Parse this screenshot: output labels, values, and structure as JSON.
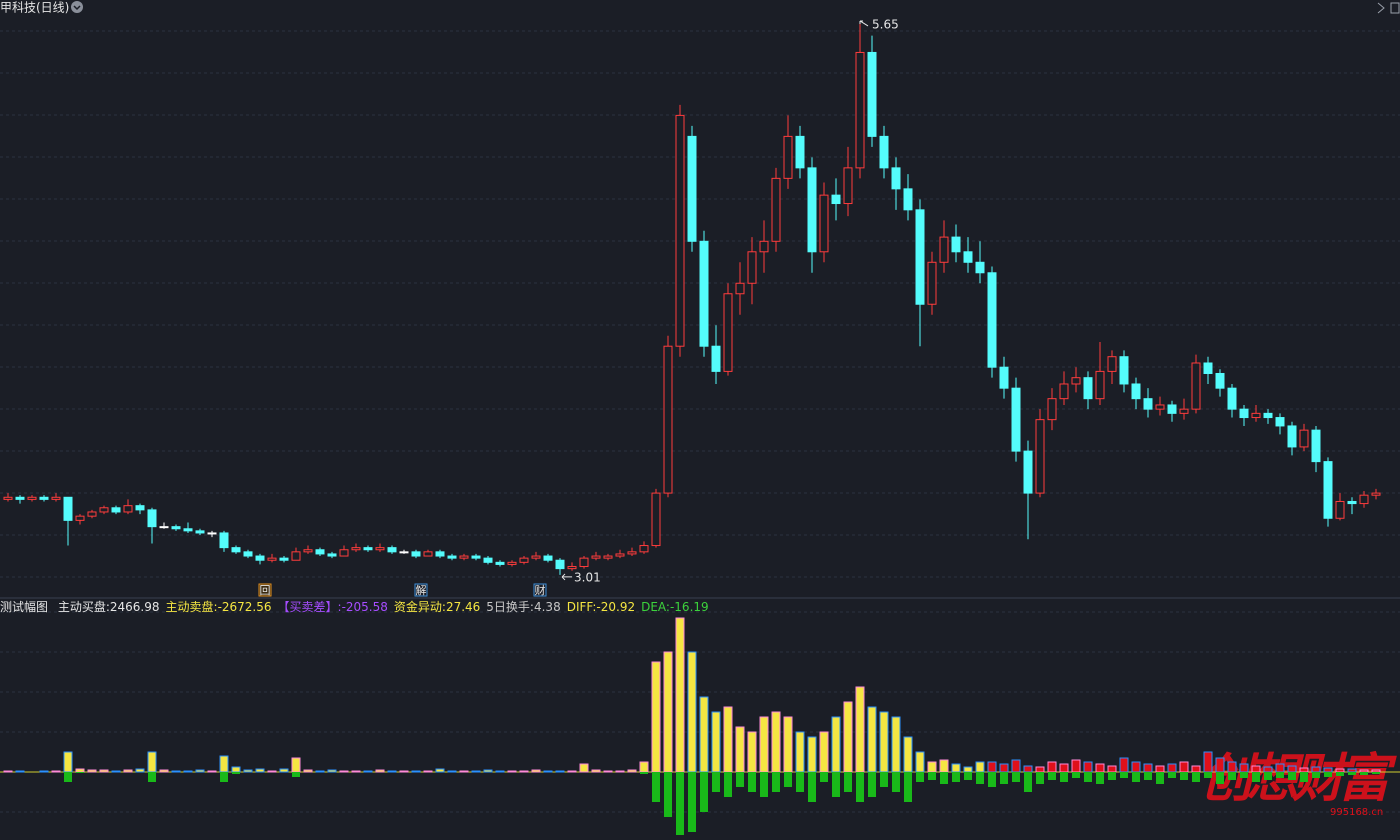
{
  "header": {
    "title": "甲科技(日线)",
    "watermark": "创想财富",
    "site": "995168.cn"
  },
  "chart_data": [
    {
      "type": "candlestick",
      "ylim": [
        2.9,
        5.75
      ],
      "up_color": "#ff3c3c",
      "down_color": "#54fcfc",
      "flat_color": "#ffffff",
      "markers": [
        "回",
        "解",
        "财"
      ],
      "candles": [
        [
          3.37,
          3.4,
          3.36,
          3.38
        ],
        [
          3.38,
          3.39,
          3.35,
          3.37
        ],
        [
          3.37,
          3.39,
          3.36,
          3.38
        ],
        [
          3.38,
          3.39,
          3.36,
          3.37
        ],
        [
          3.37,
          3.4,
          3.36,
          3.38
        ],
        [
          3.38,
          3.38,
          3.15,
          3.27
        ],
        [
          3.27,
          3.3,
          3.25,
          3.29
        ],
        [
          3.29,
          3.32,
          3.28,
          3.31
        ],
        [
          3.31,
          3.34,
          3.3,
          3.33
        ],
        [
          3.33,
          3.34,
          3.3,
          3.31
        ],
        [
          3.31,
          3.37,
          3.3,
          3.34
        ],
        [
          3.34,
          3.35,
          3.3,
          3.32
        ],
        [
          3.32,
          3.33,
          3.16,
          3.24
        ],
        [
          3.24,
          3.26,
          3.23,
          3.24
        ],
        [
          3.24,
          3.25,
          3.22,
          3.23
        ],
        [
          3.23,
          3.26,
          3.21,
          3.22
        ],
        [
          3.22,
          3.23,
          3.2,
          3.21
        ],
        [
          3.21,
          3.22,
          3.19,
          3.21
        ],
        [
          3.21,
          3.22,
          3.12,
          3.14
        ],
        [
          3.14,
          3.15,
          3.11,
          3.12
        ],
        [
          3.12,
          3.13,
          3.09,
          3.1
        ],
        [
          3.1,
          3.11,
          3.06,
          3.08
        ],
        [
          3.08,
          3.11,
          3.07,
          3.09
        ],
        [
          3.09,
          3.1,
          3.07,
          3.08
        ],
        [
          3.08,
          3.14,
          3.08,
          3.12
        ],
        [
          3.12,
          3.15,
          3.11,
          3.13
        ],
        [
          3.13,
          3.14,
          3.1,
          3.11
        ],
        [
          3.11,
          3.12,
          3.09,
          3.1
        ],
        [
          3.1,
          3.15,
          3.1,
          3.13
        ],
        [
          3.13,
          3.16,
          3.12,
          3.14
        ],
        [
          3.14,
          3.15,
          3.12,
          3.13
        ],
        [
          3.13,
          3.16,
          3.12,
          3.14
        ],
        [
          3.14,
          3.15,
          3.11,
          3.12
        ],
        [
          3.12,
          3.13,
          3.11,
          3.12
        ],
        [
          3.12,
          3.13,
          3.09,
          3.1
        ],
        [
          3.1,
          3.13,
          3.1,
          3.12
        ],
        [
          3.12,
          3.13,
          3.09,
          3.1
        ],
        [
          3.1,
          3.11,
          3.08,
          3.09
        ],
        [
          3.09,
          3.11,
          3.08,
          3.1
        ],
        [
          3.1,
          3.11,
          3.08,
          3.09
        ],
        [
          3.09,
          3.1,
          3.06,
          3.07
        ],
        [
          3.07,
          3.08,
          3.05,
          3.06
        ],
        [
          3.06,
          3.08,
          3.05,
          3.07
        ],
        [
          3.07,
          3.1,
          3.06,
          3.09
        ],
        [
          3.09,
          3.12,
          3.08,
          3.1
        ],
        [
          3.1,
          3.11,
          3.07,
          3.08
        ],
        [
          3.08,
          3.09,
          3.01,
          3.04
        ],
        [
          3.04,
          3.07,
          3.03,
          3.05
        ],
        [
          3.05,
          3.1,
          3.04,
          3.09
        ],
        [
          3.09,
          3.12,
          3.08,
          3.1
        ],
        [
          3.09,
          3.11,
          3.08,
          3.1
        ],
        [
          3.1,
          3.13,
          3.09,
          3.11
        ],
        [
          3.11,
          3.14,
          3.1,
          3.12
        ],
        [
          3.12,
          3.17,
          3.11,
          3.15
        ],
        [
          3.15,
          3.42,
          3.14,
          3.4
        ],
        [
          3.4,
          4.15,
          3.38,
          4.1
        ],
        [
          4.1,
          5.25,
          4.05,
          5.2
        ],
        [
          5.1,
          5.15,
          4.55,
          4.6
        ],
        [
          4.6,
          4.65,
          4.05,
          4.1
        ],
        [
          4.1,
          4.2,
          3.92,
          3.98
        ],
        [
          3.98,
          4.4,
          3.96,
          4.35
        ],
        [
          4.35,
          4.5,
          4.25,
          4.4
        ],
        [
          4.4,
          4.62,
          4.3,
          4.55
        ],
        [
          4.55,
          4.7,
          4.45,
          4.6
        ],
        [
          4.6,
          4.95,
          4.55,
          4.9
        ],
        [
          4.9,
          5.2,
          4.85,
          5.1
        ],
        [
          5.1,
          5.15,
          4.9,
          4.95
        ],
        [
          4.95,
          5.0,
          4.45,
          4.55
        ],
        [
          4.55,
          4.88,
          4.5,
          4.82
        ],
        [
          4.82,
          4.9,
          4.7,
          4.78
        ],
        [
          4.78,
          5.05,
          4.72,
          4.95
        ],
        [
          4.95,
          5.65,
          4.9,
          5.5
        ],
        [
          5.5,
          5.58,
          5.05,
          5.1
        ],
        [
          5.1,
          5.15,
          4.9,
          4.95
        ],
        [
          4.95,
          5.0,
          4.75,
          4.85
        ],
        [
          4.85,
          4.92,
          4.7,
          4.75
        ],
        [
          4.75,
          4.8,
          4.1,
          4.3
        ],
        [
          4.3,
          4.55,
          4.25,
          4.5
        ],
        [
          4.5,
          4.7,
          4.45,
          4.62
        ],
        [
          4.62,
          4.68,
          4.5,
          4.55
        ],
        [
          4.55,
          4.62,
          4.45,
          4.5
        ],
        [
          4.5,
          4.6,
          4.4,
          4.45
        ],
        [
          4.45,
          4.48,
          3.95,
          4.0
        ],
        [
          4.0,
          4.05,
          3.85,
          3.9
        ],
        [
          3.9,
          3.95,
          3.55,
          3.6
        ],
        [
          3.6,
          3.65,
          3.18,
          3.4
        ],
        [
          3.4,
          3.8,
          3.38,
          3.75
        ],
        [
          3.75,
          3.9,
          3.7,
          3.85
        ],
        [
          3.85,
          3.98,
          3.82,
          3.92
        ],
        [
          3.92,
          4.0,
          3.88,
          3.95
        ],
        [
          3.95,
          3.98,
          3.8,
          3.85
        ],
        [
          3.85,
          4.12,
          3.82,
          3.98
        ],
        [
          3.98,
          4.08,
          3.92,
          4.05
        ],
        [
          4.05,
          4.08,
          3.88,
          3.92
        ],
        [
          3.92,
          3.95,
          3.8,
          3.85
        ],
        [
          3.85,
          3.9,
          3.76,
          3.8
        ],
        [
          3.8,
          3.86,
          3.77,
          3.82
        ],
        [
          3.82,
          3.84,
          3.74,
          3.78
        ],
        [
          3.78,
          3.85,
          3.75,
          3.8
        ],
        [
          3.8,
          4.06,
          3.78,
          4.02
        ],
        [
          4.02,
          4.05,
          3.92,
          3.97
        ],
        [
          3.97,
          3.99,
          3.86,
          3.9
        ],
        [
          3.9,
          3.92,
          3.76,
          3.8
        ],
        [
          3.8,
          3.82,
          3.72,
          3.76
        ],
        [
          3.76,
          3.82,
          3.74,
          3.78
        ],
        [
          3.78,
          3.8,
          3.73,
          3.76
        ],
        [
          3.76,
          3.78,
          3.68,
          3.72
        ],
        [
          3.72,
          3.74,
          3.58,
          3.62
        ],
        [
          3.62,
          3.73,
          3.6,
          3.7
        ],
        [
          3.7,
          3.72,
          3.5,
          3.55
        ],
        [
          3.55,
          3.57,
          3.24,
          3.28
        ],
        [
          3.28,
          3.4,
          3.27,
          3.36
        ],
        [
          3.36,
          3.38,
          3.3,
          3.35
        ],
        [
          3.35,
          3.41,
          3.33,
          3.39
        ],
        [
          3.39,
          3.42,
          3.37,
          3.4
        ]
      ]
    },
    {
      "type": "bar",
      "title": "测试幅图",
      "ylim": [
        -68,
        172
      ],
      "indicators": [
        {
          "label": "主动买盘:",
          "value": 2466.98,
          "color": "#e6e6e6"
        },
        {
          "label": "主动卖盘:",
          "value": -2672.56,
          "color": "#f5e642"
        },
        {
          "label": "【买卖差】:",
          "value": -205.58,
          "color": "#a64dff"
        },
        {
          "label": "资金异动:",
          "value": 27.46,
          "color": "#f5e642"
        },
        {
          "label": "5日换手:",
          "value": 4.38,
          "color": "#c8c8c8"
        },
        {
          "label": "DIFF:",
          "value": -20.92,
          "color": "#f5e642"
        },
        {
          "label": "DEA:",
          "value": -16.19,
          "color": "#3cd23c"
        }
      ],
      "series": [
        {
          "color": "#f5e642",
          "values": [
            1,
            1,
            0,
            1,
            1,
            20,
            3,
            2,
            2,
            1,
            2,
            3,
            20,
            2,
            1,
            1,
            2,
            1,
            16,
            5,
            2,
            3,
            1,
            3,
            14,
            2,
            1,
            2,
            1,
            1,
            1,
            2,
            1,
            1,
            1,
            1,
            3,
            1,
            1,
            1,
            2,
            1,
            1,
            1,
            2,
            1,
            1,
            1,
            8,
            2,
            1,
            1,
            2,
            10,
            110,
            120,
            154,
            120,
            75,
            60,
            65,
            45,
            40,
            55,
            60,
            55,
            40,
            35,
            40,
            55,
            70,
            85,
            65,
            60,
            55,
            35,
            20,
            10,
            12,
            8,
            5,
            10,
            0,
            0,
            0,
            0,
            0,
            0,
            0,
            0,
            0,
            0,
            0,
            0,
            0,
            0,
            0,
            0,
            0,
            0,
            0,
            0,
            0,
            0,
            0,
            0,
            0,
            0,
            0,
            0,
            0,
            0,
            0,
            0,
            0
          ]
        },
        {
          "color": "#e0101a",
          "values": [
            0,
            0,
            0,
            0,
            0,
            0,
            0,
            0,
            0,
            0,
            0,
            0,
            0,
            0,
            0,
            0,
            0,
            0,
            0,
            0,
            0,
            0,
            0,
            0,
            0,
            0,
            0,
            0,
            0,
            0,
            0,
            0,
            0,
            0,
            0,
            0,
            0,
            0,
            0,
            0,
            0,
            0,
            0,
            0,
            0,
            0,
            0,
            0,
            0,
            0,
            0,
            0,
            0,
            0,
            0,
            0,
            0,
            0,
            0,
            0,
            0,
            0,
            0,
            0,
            0,
            0,
            0,
            0,
            0,
            0,
            0,
            0,
            0,
            0,
            0,
            0,
            0,
            0,
            0,
            0,
            0,
            0,
            10,
            8,
            12,
            6,
            5,
            10,
            8,
            12,
            10,
            8,
            6,
            14,
            10,
            8,
            6,
            8,
            10,
            6,
            20,
            14,
            10,
            8,
            6,
            5,
            8,
            6,
            4,
            5,
            4,
            3,
            3,
            2,
            2
          ]
        },
        {
          "color": "#19b919",
          "values": [
            0,
            0,
            0,
            0,
            0,
            -10,
            -1,
            0,
            0,
            0,
            0,
            0,
            -10,
            0,
            0,
            0,
            0,
            0,
            -10,
            -2,
            0,
            0,
            0,
            0,
            -5,
            0,
            0,
            0,
            0,
            0,
            0,
            0,
            0,
            0,
            0,
            0,
            0,
            0,
            0,
            0,
            0,
            0,
            0,
            0,
            0,
            0,
            0,
            0,
            0,
            0,
            0,
            0,
            0,
            -2,
            -30,
            -45,
            -63,
            -60,
            -40,
            -20,
            -25,
            -15,
            -20,
            -25,
            -20,
            -15,
            -20,
            -30,
            -10,
            -25,
            -20,
            -30,
            -25,
            -15,
            -20,
            -30,
            -10,
            -8,
            -12,
            -10,
            -8,
            -12,
            -15,
            -12,
            -10,
            -20,
            -12,
            -8,
            -10,
            -6,
            -10,
            -12,
            -8,
            -6,
            -10,
            -8,
            -12,
            -6,
            -8,
            -10,
            -6,
            -12,
            -8,
            -6,
            -10,
            -8,
            -6,
            -8,
            -10,
            -6,
            -5,
            -4,
            -3,
            -3,
            -2
          ]
        }
      ]
    }
  ]
}
